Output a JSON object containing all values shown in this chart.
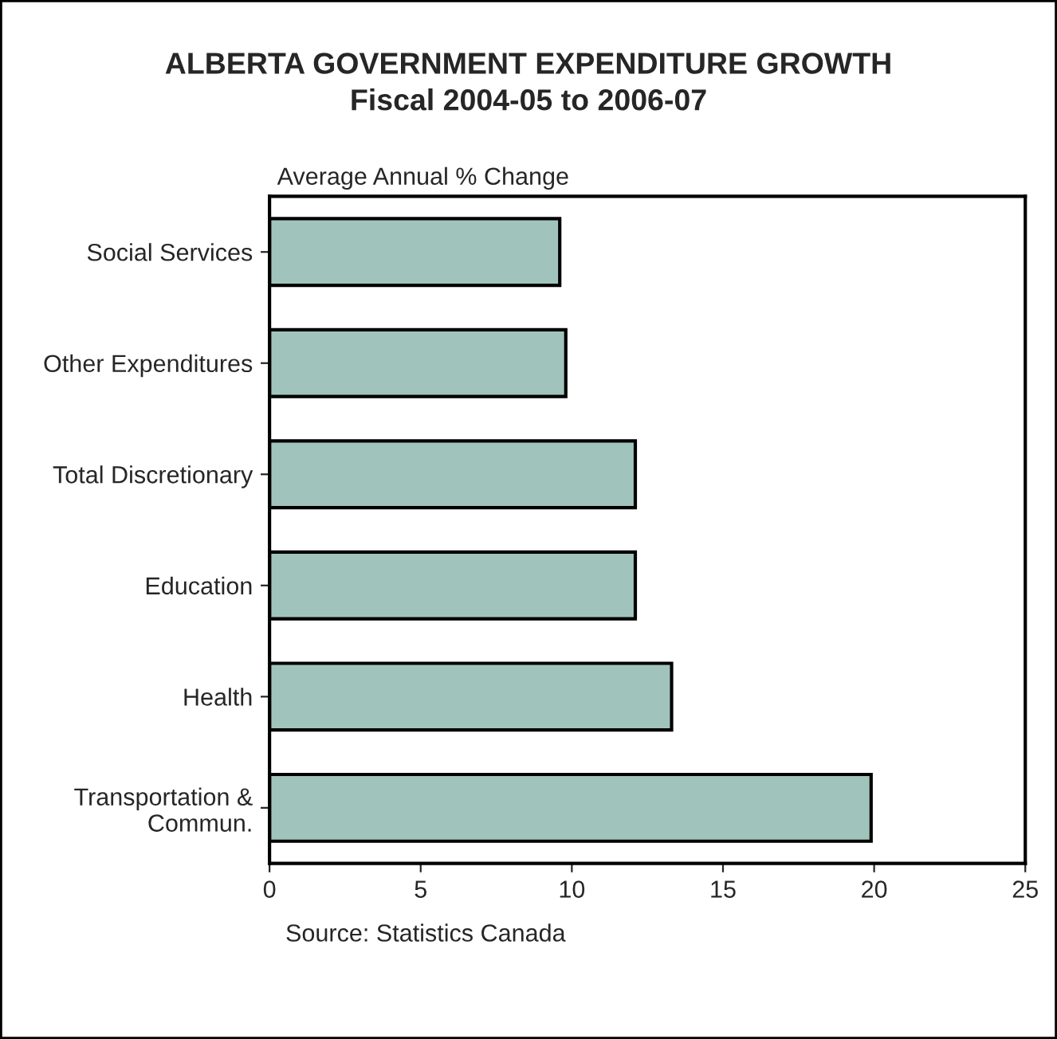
{
  "chart_data": {
    "type": "bar",
    "orientation": "horizontal",
    "title": "ALBERTA GOVERNMENT EXPENDITURE GROWTH\nFiscal 2004-05 to 2006-07",
    "xlabel": "Average Annual % Change",
    "categories": [
      "Social Services",
      "Other Expenditures",
      "Total Discretionary",
      "Education",
      "Health",
      "Transportation &\nCommun."
    ],
    "values": [
      9.6,
      9.8,
      12.1,
      12.1,
      13.3,
      19.9
    ],
    "color": "#a0c4bc",
    "xlim": [
      0,
      25
    ],
    "xticks": [
      0,
      5,
      10,
      15,
      20,
      25
    ],
    "grid": false,
    "legend": false,
    "annotations": [
      "Source: Statistics Canada"
    ]
  }
}
